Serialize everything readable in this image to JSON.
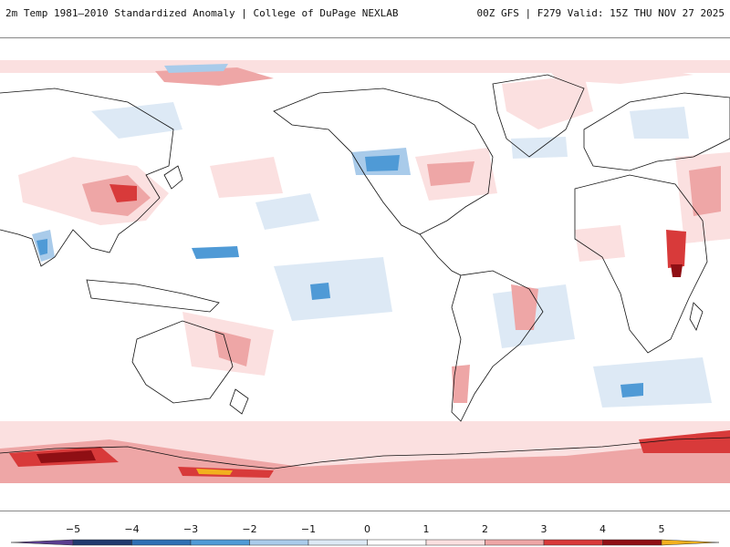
{
  "header": {
    "left": "2m Temp 1981–2010 Standardized Anomaly | College of DuPage NEXLAB",
    "right": "00Z GFS | F279 Valid: 15Z THU NOV 27 2025"
  },
  "colorbar": {
    "ticks": [
      {
        "value": -5,
        "label": "−5"
      },
      {
        "value": -4,
        "label": "−4"
      },
      {
        "value": -3,
        "label": "−3"
      },
      {
        "value": -2,
        "label": "−2"
      },
      {
        "value": -1,
        "label": "−1"
      },
      {
        "value": 0,
        "label": "0"
      },
      {
        "value": 1,
        "label": "1"
      },
      {
        "value": 2,
        "label": "2"
      },
      {
        "value": 3,
        "label": "3"
      },
      {
        "value": 4,
        "label": "4"
      },
      {
        "value": 5,
        "label": "5"
      }
    ],
    "bins": [
      {
        "from": -6,
        "to": -5,
        "color": "#5a3d8f"
      },
      {
        "from": -5,
        "to": -4,
        "color": "#203a6e"
      },
      {
        "from": -4,
        "to": -3,
        "color": "#2e6fb4"
      },
      {
        "from": -3,
        "to": -2,
        "color": "#4f9ad6"
      },
      {
        "from": -2,
        "to": -1,
        "color": "#a9cbea"
      },
      {
        "from": -1,
        "to": 0,
        "color": "#dde9f5"
      },
      {
        "from": 0,
        "to": 1,
        "color": "#ffffff"
      },
      {
        "from": 1,
        "to": 2,
        "color": "#fbe0e0"
      },
      {
        "from": 2,
        "to": 3,
        "color": "#eea6a6"
      },
      {
        "from": 3,
        "to": 4,
        "color": "#d83a3a"
      },
      {
        "from": 4,
        "to": 5,
        "color": "#8f0f14"
      },
      {
        "from": 5,
        "to": 6,
        "color": "#f2b01e"
      }
    ]
  },
  "colors": {
    "ocean": "#ffffff",
    "coast": "#111111",
    "warm_light": "#fbe0e0",
    "warm_mid": "#eea6a6",
    "warm_strong": "#d83a3a",
    "warm_extreme": "#8f0f14",
    "cold_light": "#dde9f5",
    "cold_mid": "#a9cbea",
    "cold_strong": "#4f9ad6"
  }
}
